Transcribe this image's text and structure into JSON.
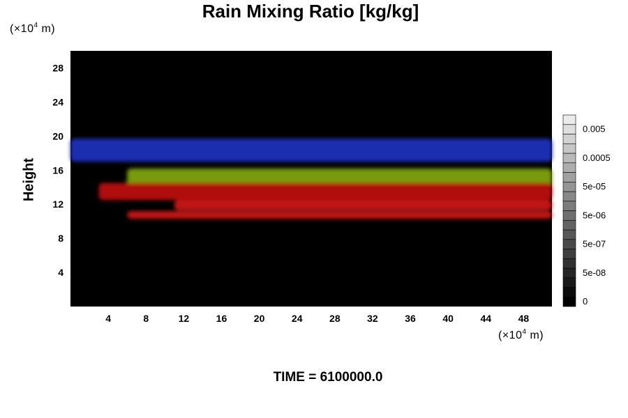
{
  "chart_data": {
    "type": "heatmap",
    "title": "Rain Mixing Ratio [kg/kg]",
    "ylabel": "Height",
    "x_unit": {
      "prefix": "(×10",
      "exp": "4",
      "suffix": " m)"
    },
    "y_unit": {
      "prefix": "(×10",
      "exp": "4",
      "suffix": " m)"
    },
    "xlim": [
      0,
      51
    ],
    "ylim": [
      0,
      30
    ],
    "xticks": [
      4,
      8,
      12,
      16,
      20,
      24,
      28,
      32,
      36,
      40,
      44,
      48
    ],
    "yticks": [
      4,
      8,
      12,
      16,
      20,
      24,
      28
    ],
    "background": "#000000",
    "bands": [
      {
        "color": "#1a2fb0",
        "x": [
          0,
          51
        ],
        "y": [
          17,
          19.7
        ]
      },
      {
        "color": "#7a9a10",
        "x": [
          6,
          51
        ],
        "y": [
          14,
          16.2
        ]
      },
      {
        "color": "#b01010",
        "x": [
          3,
          51
        ],
        "y": [
          12.5,
          14.5
        ]
      },
      {
        "color": "#c01515",
        "x": [
          11,
          51
        ],
        "y": [
          11.3,
          12.5
        ]
      },
      {
        "color": "#c01515",
        "x": [
          6,
          51
        ],
        "y": [
          10.3,
          11.2
        ]
      }
    ],
    "colorbar": {
      "levels": 20,
      "labels": [
        "0.005",
        "0.0005",
        "5e-05",
        "5e-06",
        "5e-07",
        "5e-08",
        "0"
      ],
      "label_levels": [
        18,
        15,
        12,
        9,
        6,
        3,
        0
      ]
    }
  },
  "footer": {
    "time_label": "TIME = 6100000.0"
  }
}
